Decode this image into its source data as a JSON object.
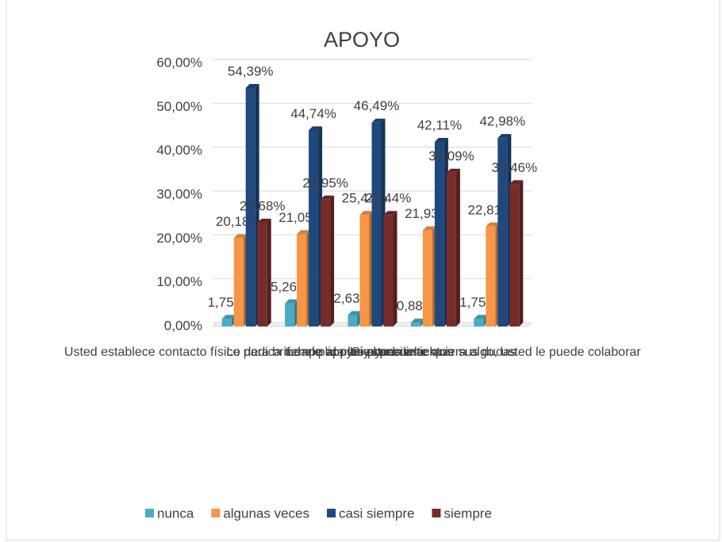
{
  "chart_data": {
    "type": "bar",
    "title": "APOYO",
    "categories": [
      "Usted establece contacto físico para brindarle apoyo y consuelo",
      "Le dedica tiempo al paciente",
      "Le explica los procedimientos",
      "Le ayuda a aclarar sus dudas",
      "Si el paciente quiera algo, usted le puede colaborar"
    ],
    "series": [
      {
        "name": "nunca",
        "color": "#4bacc6",
        "values": [
          1.75,
          5.26,
          2.63,
          0.88,
          1.75
        ],
        "value_labels": [
          "1,75%",
          "5,26%",
          "2,63%",
          "0,88%",
          "1,75%"
        ]
      },
      {
        "name": "algunas veces",
        "color": "#f79646",
        "values": [
          20.18,
          21.05,
          25.44,
          21.93,
          22.81
        ],
        "value_labels": [
          "20,18%",
          "21,05%",
          "25,44%",
          "21,93%",
          "22,81%"
        ]
      },
      {
        "name": "casi siempre",
        "color": "#1f497d",
        "values": [
          54.39,
          44.74,
          46.49,
          42.11,
          42.98
        ],
        "value_labels": [
          "54,39%",
          "44,74%",
          "46,49%",
          "42,11%",
          "42,98%"
        ]
      },
      {
        "name": "siempre",
        "color": "#772c2a",
        "values": [
          23.68,
          28.95,
          25.44,
          35.09,
          32.46
        ],
        "value_labels": [
          "23,68%",
          "28,95%",
          "25,44%",
          "35,09%",
          "32,46%"
        ]
      }
    ],
    "ylim": [
      0,
      60
    ],
    "yticks": [
      {
        "value": 0,
        "label": "0,00%"
      },
      {
        "value": 10,
        "label": "10,00%"
      },
      {
        "value": 20,
        "label": "20,00%"
      },
      {
        "value": 30,
        "label": "30,00%"
      },
      {
        "value": 40,
        "label": "40,00%"
      },
      {
        "value": 50,
        "label": "50,00%"
      },
      {
        "value": 60,
        "label": "60,00%"
      }
    ],
    "grid": true,
    "legend": "bottom"
  }
}
